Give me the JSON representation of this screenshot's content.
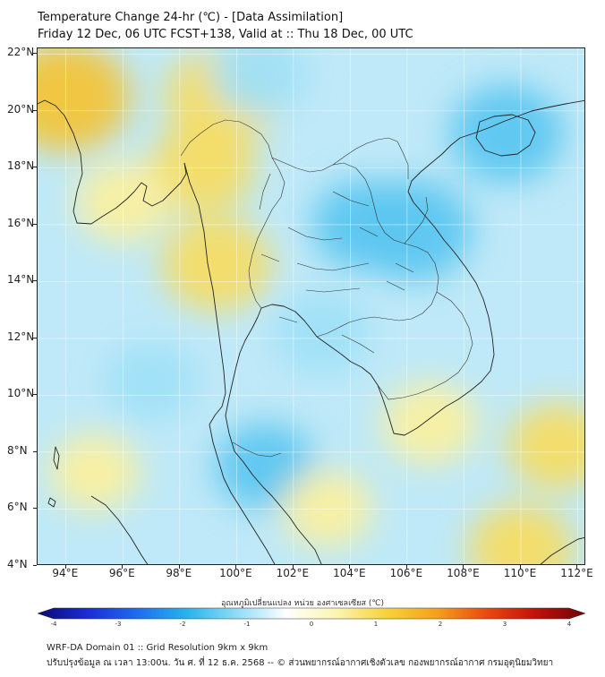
{
  "header": {
    "title_line1": "Temperature Change 24-hr (℃) - [Data Assimilation]",
    "title_line2": "Friday 12 Dec, 06 UTC FCST+138, Valid at :: Thu 18 Dec, 00 UTC"
  },
  "map": {
    "lat_labels": [
      "22°N",
      "20°N",
      "18°N",
      "16°N",
      "14°N",
      "12°N",
      "10°N",
      "8°N",
      "6°N",
      "4°N"
    ],
    "lon_labels": [
      "94°E",
      "96°E",
      "98°E",
      "100°E",
      "102°E",
      "104°E",
      "106°E",
      "108°E",
      "110°E",
      "112°E"
    ],
    "lat_values": [
      22,
      20,
      18,
      16,
      14,
      12,
      10,
      8,
      6,
      4
    ],
    "lon_values": [
      94,
      96,
      98,
      100,
      102,
      104,
      106,
      108,
      110,
      112
    ],
    "extent": {
      "lon_min": 93.0,
      "lon_max": 112.3,
      "lat_min": 4.0,
      "lat_max": 22.2
    },
    "field_anomalies": [
      {
        "lon": 94.0,
        "lat": 20.5,
        "value": 1.6
      },
      {
        "lon": 99.5,
        "lat": 20.5,
        "value": 1.3
      },
      {
        "lon": 98.8,
        "lat": 18.0,
        "value": 1.1
      },
      {
        "lon": 99.3,
        "lat": 14.6,
        "value": 1.2
      },
      {
        "lon": 96.0,
        "lat": 16.8,
        "value": 0.9
      },
      {
        "lon": 104.5,
        "lat": 16.0,
        "value": -1.1
      },
      {
        "lon": 106.2,
        "lat": 15.8,
        "value": -1.4
      },
      {
        "lon": 109.5,
        "lat": 19.2,
        "value": -1.3
      },
      {
        "lon": 103.0,
        "lat": 12.2,
        "value": -0.9
      },
      {
        "lon": 97.0,
        "lat": 10.5,
        "value": -0.8
      },
      {
        "lon": 100.8,
        "lat": 21.3,
        "value": -0.9
      },
      {
        "lon": 101.0,
        "lat": 7.5,
        "value": -1.0
      },
      {
        "lon": 106.8,
        "lat": 9.0,
        "value": 0.9
      },
      {
        "lon": 95.0,
        "lat": 7.3,
        "value": 0.8
      },
      {
        "lon": 111.3,
        "lat": 8.2,
        "value": 1.0
      },
      {
        "lon": 110.0,
        "lat": 4.6,
        "value": 1.1
      },
      {
        "lon": 103.2,
        "lat": 6.0,
        "value": 0.8
      }
    ]
  },
  "colorbar": {
    "title": "อุณหภูมิเปลี่ยนแปลง หน่วย องศาเซลเซียส (℃)",
    "min": -4,
    "max": 4,
    "tick_labels": [
      "-4",
      "-3",
      "-2",
      "-1",
      "0",
      "1",
      "2",
      "3",
      "4"
    ],
    "tick_values": [
      -4,
      -3,
      -2,
      -1,
      0,
      1,
      2,
      3,
      4
    ],
    "stops": [
      "#0a0a6e",
      "#1c2bd6",
      "#1e6cf0",
      "#27b4ee",
      "#8fdcf6",
      "#ffffff",
      "#fbf5b0",
      "#f7d23a",
      "#f6a11c",
      "#ea4a0f",
      "#c2100a",
      "#6e0505"
    ]
  },
  "footer": {
    "line1": "WRF-DA Domain 01 :: Grid Resolution 9km x 9km",
    "line2": "ปรับปรุงข้อมูล ณ เวลา 13:00น. วัน ศ. ที่ 12 ธ.ค. 2568 -- © ส่วนพยากรณ์อากาศเชิงตัวเลข กองพยากรณ์อากาศ กรมอุตุนิยมวิทยา"
  }
}
